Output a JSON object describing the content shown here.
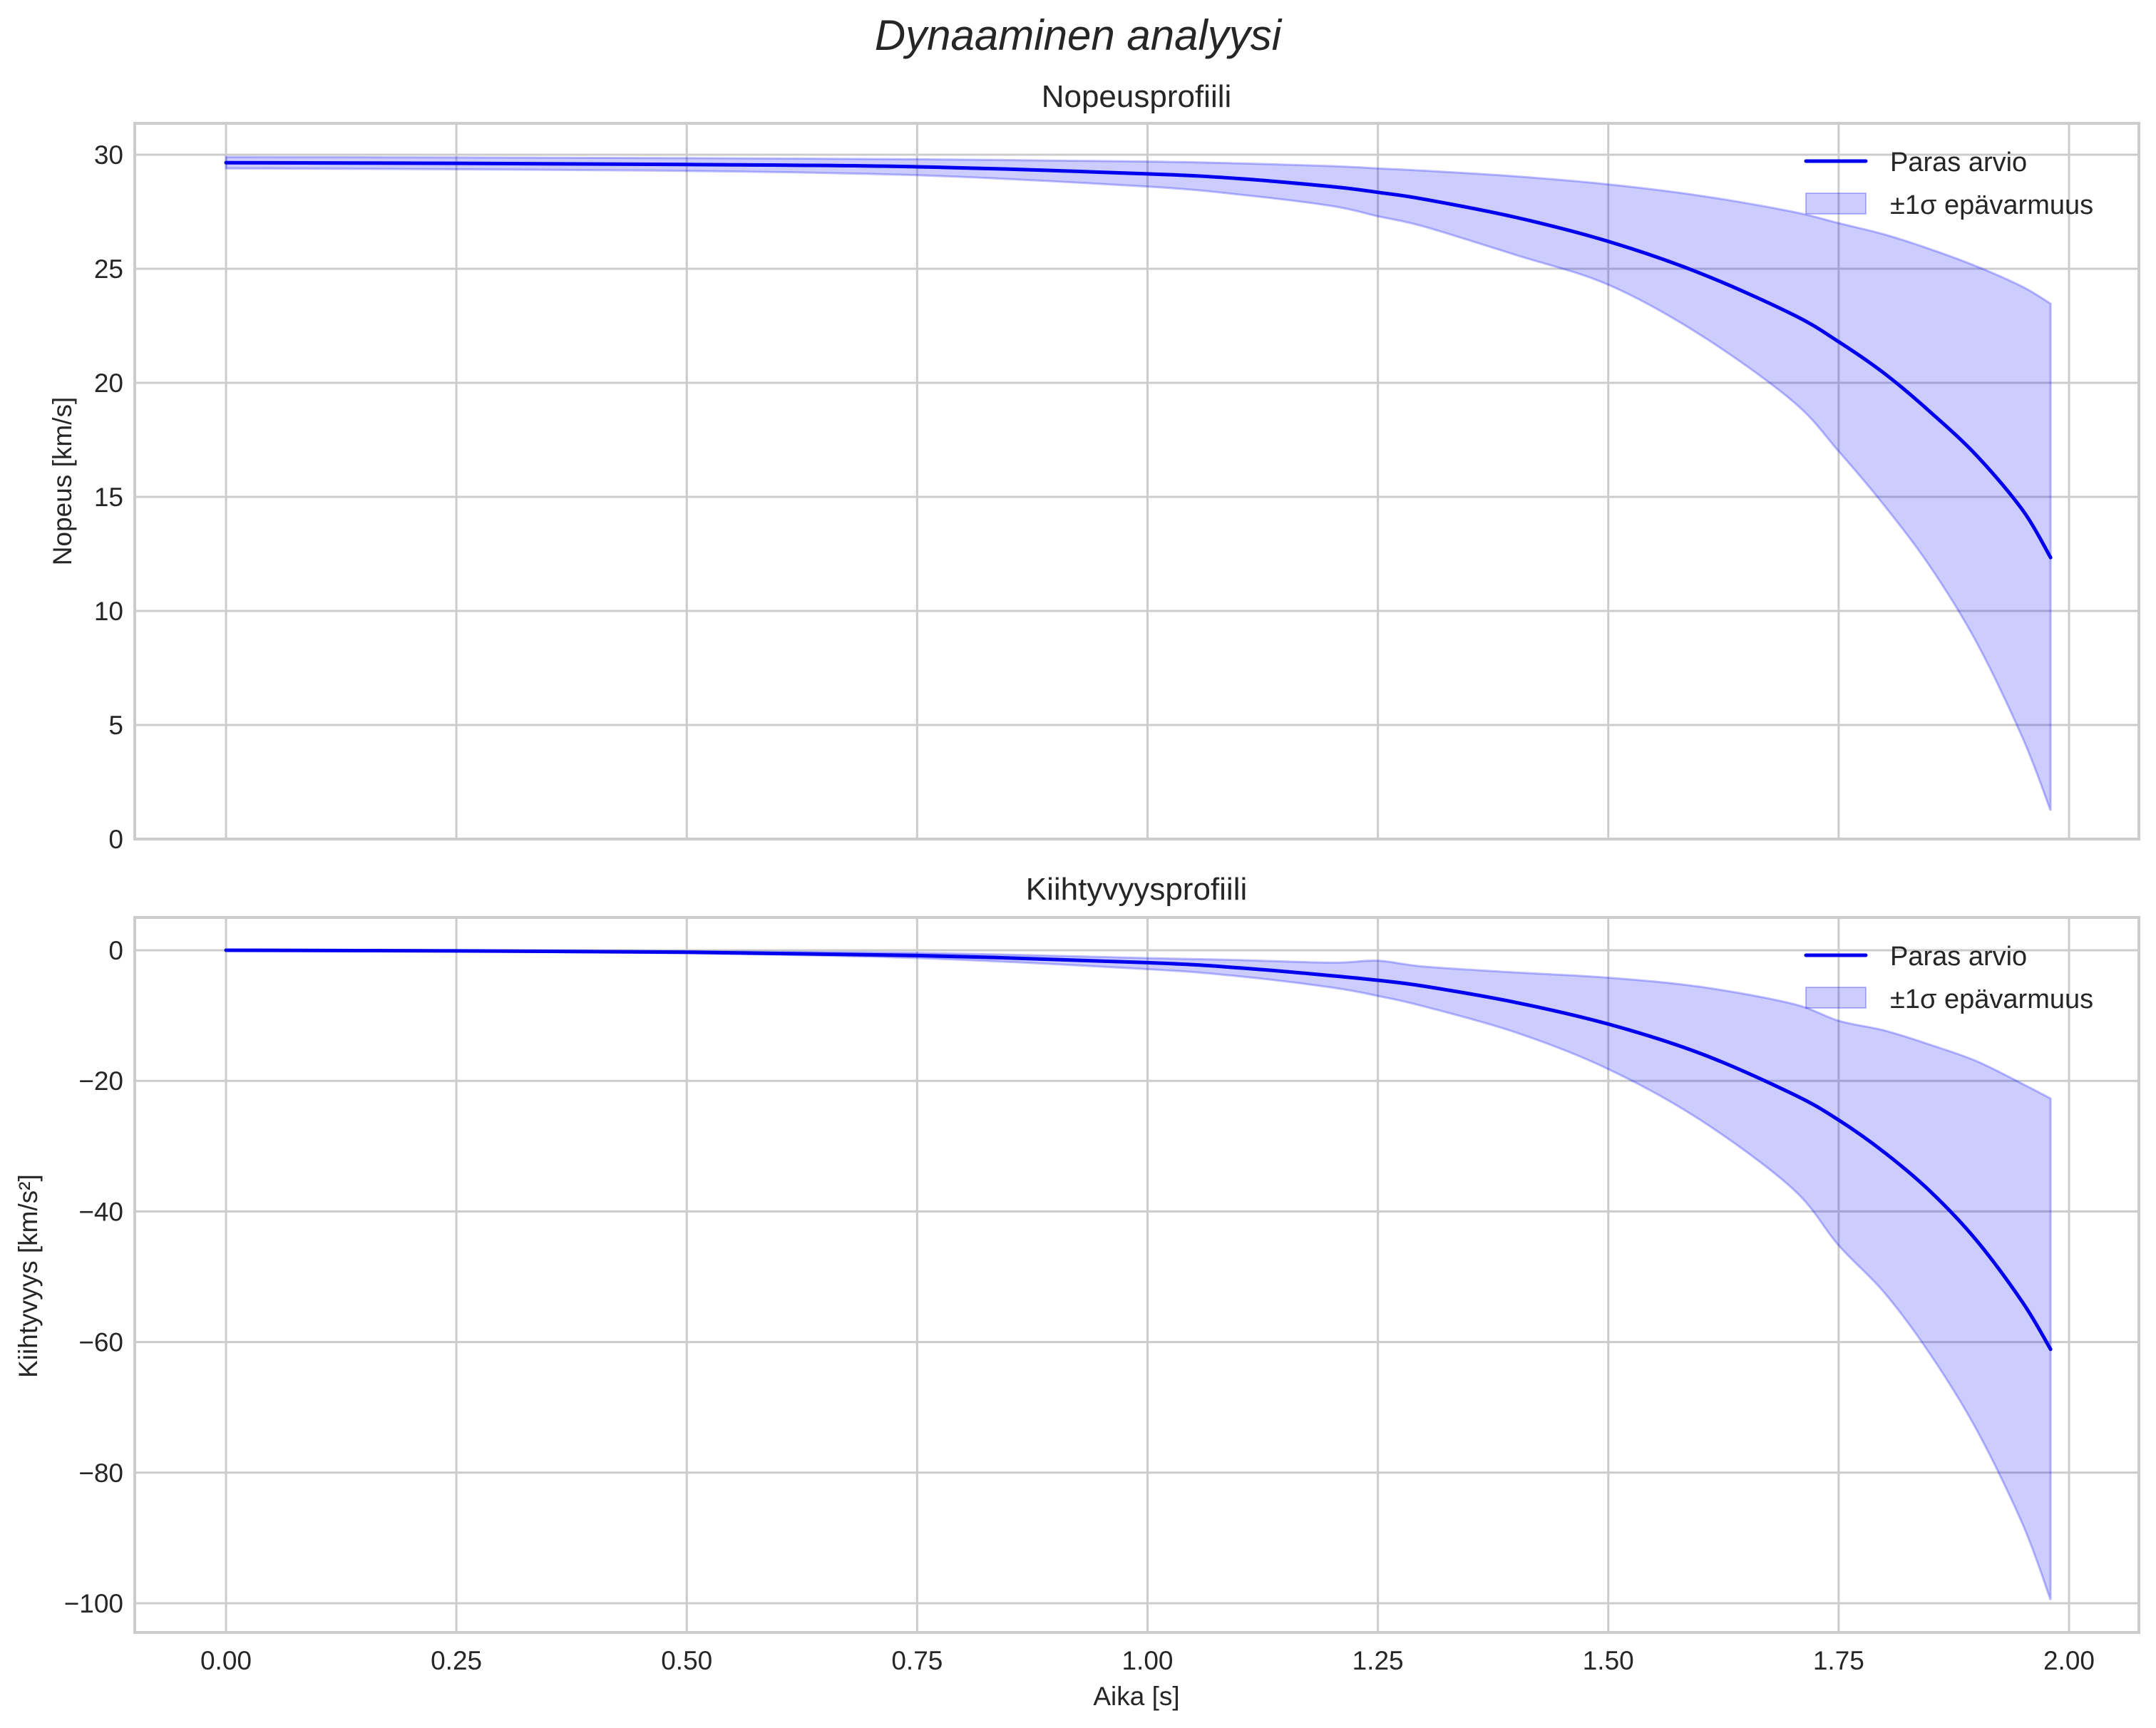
{
  "figure": {
    "suptitle": "Dynaaminen analyysi",
    "xlabel": "Aika [s]",
    "colors": {
      "line": "#0000ee",
      "band_fill": "#0000ff",
      "band_alpha": 0.2,
      "grid": "#cccccc",
      "text": "#262626"
    }
  },
  "chart_data": [
    {
      "type": "line",
      "title": "Nopeusprofiili",
      "xlabel": "",
      "ylabel": "Nopeus [km/s]",
      "xlim": [
        -0.1,
        2.08
      ],
      "ylim": [
        0,
        31.2
      ],
      "xticks": [
        0.0,
        0.25,
        0.5,
        0.75,
        1.0,
        1.25,
        1.5,
        1.75,
        2.0
      ],
      "xtick_labels": [
        "0.00",
        "0.25",
        "0.50",
        "0.75",
        "1.00",
        "1.25",
        "1.50",
        "1.75",
        "2.00"
      ],
      "yticks": [
        0,
        5,
        10,
        15,
        20,
        25,
        30
      ],
      "ytick_labels": [
        "0",
        "5",
        "10",
        "15",
        "20",
        "25",
        "30"
      ],
      "grid": true,
      "legend": {
        "position": "upper right",
        "entries": [
          "Paras arvio",
          "±1σ epävarmuus"
        ]
      },
      "x": [
        0.0,
        0.25,
        0.5,
        0.75,
        1.0,
        1.1,
        1.2,
        1.25,
        1.3,
        1.4,
        1.5,
        1.6,
        1.7,
        1.75,
        1.8,
        1.85,
        1.9,
        1.95,
        1.98
      ],
      "series": [
        {
          "name": "Paras arvio",
          "kind": "line",
          "values": [
            29.65,
            29.62,
            29.57,
            29.47,
            29.16,
            28.95,
            28.6,
            28.35,
            28.05,
            27.25,
            26.2,
            24.8,
            23.0,
            21.8,
            20.4,
            18.7,
            16.8,
            14.4,
            12.34
          ]
        },
        {
          "name": "±1σ epävarmuus (ylä)",
          "kind": "band_upper",
          "values": [
            29.9,
            29.88,
            29.85,
            29.8,
            29.7,
            29.62,
            29.5,
            29.4,
            29.3,
            29.05,
            28.7,
            28.2,
            27.5,
            27.0,
            26.5,
            25.85,
            25.1,
            24.2,
            23.47
          ]
        },
        {
          "name": "±1σ epävarmuus (ala)",
          "kind": "band_lower",
          "values": [
            29.4,
            29.36,
            29.29,
            29.1,
            28.6,
            28.25,
            27.75,
            27.3,
            26.85,
            25.6,
            24.3,
            22.1,
            19.2,
            17.0,
            14.6,
            11.9,
            8.6,
            4.4,
            1.25
          ]
        }
      ]
    },
    {
      "type": "line",
      "title": "Kiihtyvyysprofiili",
      "xlabel": "Aika [s]",
      "ylabel": "Kiihtyvyys [km/s²]",
      "xlim": [
        -0.1,
        2.08
      ],
      "ylim": [
        -104.5,
        5.0
      ],
      "xticks": [
        0.0,
        0.25,
        0.5,
        0.75,
        1.0,
        1.25,
        1.5,
        1.75,
        2.0
      ],
      "xtick_labels": [
        "0.00",
        "0.25",
        "0.50",
        "0.75",
        "1.00",
        "1.25",
        "1.50",
        "1.75",
        "2.00"
      ],
      "yticks": [
        0,
        -20,
        -40,
        -60,
        -80,
        -100
      ],
      "ytick_labels": [
        "0",
        "−20",
        "−40",
        "−60",
        "−80",
        "−100"
      ],
      "grid": true,
      "legend": {
        "position": "upper right",
        "entries": [
          "Paras arvio",
          "±1σ epävarmuus"
        ]
      },
      "x": [
        0.0,
        0.25,
        0.5,
        0.75,
        1.0,
        1.1,
        1.2,
        1.25,
        1.3,
        1.4,
        1.5,
        1.6,
        1.7,
        1.75,
        1.8,
        1.85,
        1.9,
        1.95,
        1.98
      ],
      "series": [
        {
          "name": "Paras arvio",
          "kind": "line",
          "values": [
            0.0,
            -0.1,
            -0.3,
            -0.8,
            -1.9,
            -2.7,
            -3.9,
            -4.6,
            -5.5,
            -8.0,
            -11.3,
            -15.8,
            -22.0,
            -26.0,
            -31.0,
            -37.0,
            -44.5,
            -54.0,
            -61.1
          ]
        },
        {
          "name": "±1σ epävarmuus (ylä)",
          "kind": "band_upper",
          "values": [
            0.0,
            -0.05,
            -0.15,
            -0.4,
            -1.2,
            -1.5,
            -1.9,
            -1.6,
            -2.5,
            -3.4,
            -4.2,
            -5.6,
            -8.2,
            -10.8,
            -12.3,
            -14.5,
            -17.0,
            -20.5,
            -22.7
          ]
        },
        {
          "name": "±1σ epävarmuus (ala)",
          "kind": "band_lower",
          "values": [
            0.0,
            -0.15,
            -0.45,
            -1.2,
            -2.9,
            -4.0,
            -5.7,
            -7.0,
            -8.6,
            -12.6,
            -18.2,
            -26.0,
            -36.5,
            -45.2,
            -52.5,
            -62.0,
            -73.5,
            -88.0,
            -99.5
          ]
        }
      ]
    }
  ]
}
